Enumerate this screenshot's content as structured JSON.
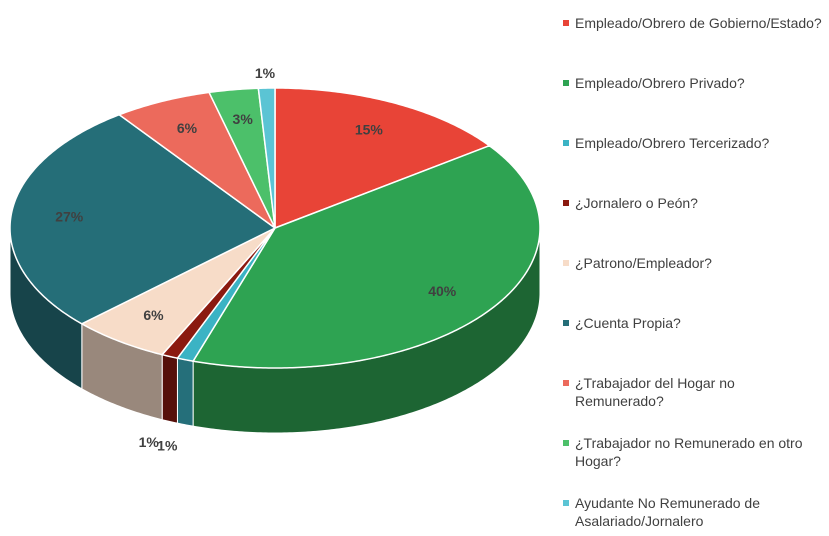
{
  "chart_data": {
    "type": "pie",
    "categories": [
      "Empleado/Obrero de Gobierno/Estado?",
      "Empleado/Obrero Privado?",
      "Empleado/Obrero Tercerizado?",
      "¿Jornalero o Peón?",
      "¿Patrono/Empleador?",
      "¿Cuenta Propia?",
      "¿Trabajador del Hogar no Remunerado?",
      "¿Trabajador no Remunerado en otro Hogar?",
      "Ayudante No Remunerado de Asalariado/Jornalero"
    ],
    "values": [
      15,
      40,
      1,
      1,
      6,
      27,
      6,
      3,
      1
    ],
    "value_labels": [
      "15%",
      "40%",
      "1%",
      "1%",
      "6%",
      "27%",
      "6%",
      "3%",
      "1%"
    ],
    "colors": [
      "#e84437",
      "#2ea352",
      "#3bb3c4",
      "#8b1a10",
      "#f7dcc8",
      "#256e78",
      "#ec6a5c",
      "#4cc06a",
      "#5bc4d4"
    ],
    "legend": "right"
  }
}
